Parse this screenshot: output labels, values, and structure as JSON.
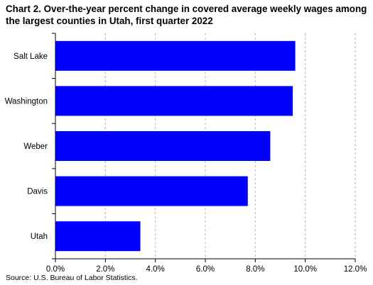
{
  "chart_data": {
    "type": "bar",
    "orientation": "horizontal",
    "title": "Chart 2. Over-the-year percent change in covered average weekly wages among the largest counties in Utah, first quarter 2022",
    "categories": [
      "Salt Lake",
      "Washington",
      "Weber",
      "Davis",
      "Utah"
    ],
    "values": [
      9.6,
      9.5,
      8.6,
      7.7,
      3.4
    ],
    "xlim": [
      0,
      12
    ],
    "x_ticks": [
      "0.0%",
      "2.0%",
      "4.0%",
      "6.0%",
      "8.0%",
      "10.0%",
      "12.0%"
    ],
    "x_tick_values": [
      0,
      2,
      4,
      6,
      8,
      10,
      12
    ],
    "grid": "vertical dashed",
    "bar_color": "#0000FF",
    "source": "Source: U.S. Bureau of Labor Statistics."
  }
}
